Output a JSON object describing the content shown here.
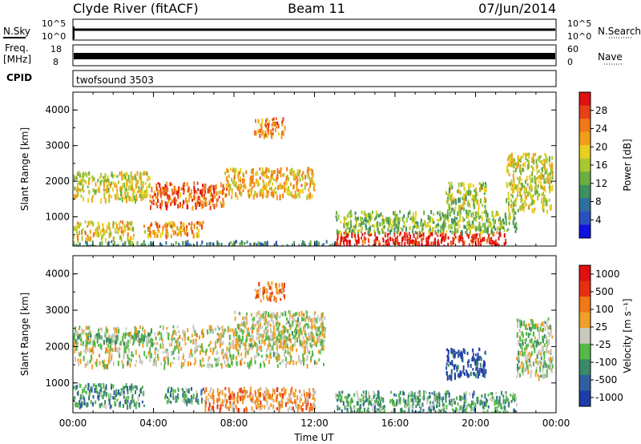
{
  "header": {
    "station": "Clyde River (fitACF)",
    "beam": "Beam 11",
    "date": "07/Jun/2014"
  },
  "top_strips": {
    "nsky_label": "N.Sky",
    "nsky_ticks": [
      "10^5",
      "10^0"
    ],
    "nsearch_label": "N.Search",
    "nsearch_ticks": [
      "10^5",
      "10^0"
    ],
    "freq_label_1": "Freq.",
    "freq_label_2": "[MHz]",
    "freq_ticks": [
      "18",
      "8"
    ],
    "nave_label": "Nave",
    "nave_ticks": [
      "60",
      "0"
    ],
    "cpid_label": "CPID",
    "cpid_value": "twofsound  3503"
  },
  "chart_data": [
    {
      "type": "heatmap",
      "title": "",
      "xlabel": "",
      "ylabel": "Slant Range [km]",
      "y_ticks": [
        "1000",
        "2000",
        "3000",
        "4000"
      ],
      "ylim": [
        180,
        4500
      ],
      "xlim_hours": [
        0,
        24
      ],
      "colorbar": {
        "label": "Power [dB]",
        "ticks": [
          "4",
          "8",
          "12",
          "16",
          "20",
          "24",
          "28"
        ],
        "colors": [
          "#1010e0",
          "#2a4fc0",
          "#2f6fa0",
          "#3f9060",
          "#6ab040",
          "#a8c830",
          "#e8d020",
          "#f0a018",
          "#f07818",
          "#e84018",
          "#e01010"
        ]
      },
      "bands": [
        {
          "x0": 0.0,
          "x1": 3.8,
          "y0": 1500,
          "y1": 2300,
          "level": 0.55
        },
        {
          "x0": 3.8,
          "x1": 7.5,
          "y0": 1300,
          "y1": 2000,
          "level": 0.8
        },
        {
          "x0": 7.5,
          "x1": 12.0,
          "y0": 1600,
          "y1": 2400,
          "level": 0.65
        },
        {
          "x0": 0.0,
          "x1": 3.0,
          "y0": 400,
          "y1": 900,
          "level": 0.6
        },
        {
          "x0": 3.5,
          "x1": 6.5,
          "y0": 500,
          "y1": 900,
          "level": 0.7
        },
        {
          "x0": 9.0,
          "x1": 10.5,
          "y0": 3300,
          "y1": 3800,
          "level": 0.75
        },
        {
          "x0": 13.0,
          "x1": 21.5,
          "y0": 200,
          "y1": 600,
          "level": 0.95
        },
        {
          "x0": 13.0,
          "x1": 22.0,
          "y0": 600,
          "y1": 1200,
          "level": 0.45
        },
        {
          "x0": 18.5,
          "x1": 20.5,
          "y0": 1200,
          "y1": 2000,
          "level": 0.5
        },
        {
          "x0": 21.5,
          "x1": 23.8,
          "y0": 1200,
          "y1": 2800,
          "level": 0.55
        },
        {
          "x0": 0.0,
          "x1": 13.0,
          "y0": 200,
          "y1": 350,
          "level": 0.3
        }
      ]
    },
    {
      "type": "heatmap",
      "title": "",
      "xlabel": "Time UT",
      "ylabel": "Slant Range [km]",
      "x_ticks": [
        "00:00",
        "04:00",
        "08:00",
        "12:00",
        "16:00",
        "20:00",
        "00:00"
      ],
      "y_ticks": [
        "1000",
        "2000",
        "3000",
        "4000"
      ],
      "ylim": [
        180,
        4500
      ],
      "xlim_hours": [
        0,
        24
      ],
      "colorbar": {
        "label": "Velocity [m s⁻¹]",
        "ticks": [
          "1000",
          "500",
          "100",
          "25",
          "-25",
          "-100",
          "-500",
          "-1000"
        ],
        "colors": [
          "#1e3ca8",
          "#2f5fa0",
          "#3a8a68",
          "#55b848",
          "#c8c8c0",
          "#f0a028",
          "#f07818",
          "#e83010",
          "#e01010"
        ]
      },
      "bands": [
        {
          "x0": 0.0,
          "x1": 12.5,
          "y0": 1500,
          "y1": 2600,
          "level": 0.5
        },
        {
          "x0": 8.0,
          "x1": 12.5,
          "y0": 2000,
          "y1": 3000,
          "level": 0.5
        },
        {
          "x0": 0.0,
          "x1": 3.5,
          "y0": 400,
          "y1": 1000,
          "level": 0.3
        },
        {
          "x0": 4.5,
          "x1": 6.5,
          "y0": 500,
          "y1": 900,
          "level": 0.3
        },
        {
          "x0": 0.0,
          "x1": 4.0,
          "y0": 2100,
          "y1": 2400,
          "level": 0.4
        },
        {
          "x0": 9.0,
          "x1": 10.5,
          "y0": 3300,
          "y1": 3800,
          "level": 0.7
        },
        {
          "x0": 6.5,
          "x1": 12.0,
          "y0": 300,
          "y1": 900,
          "level": 0.65
        },
        {
          "x0": 13.0,
          "x1": 22.0,
          "y0": 200,
          "y1": 800,
          "level": 0.35
        },
        {
          "x0": 18.5,
          "x1": 20.5,
          "y0": 1200,
          "y1": 2000,
          "level": 0.1
        },
        {
          "x0": 22.0,
          "x1": 23.8,
          "y0": 1200,
          "y1": 2800,
          "level": 0.45
        }
      ]
    }
  ]
}
